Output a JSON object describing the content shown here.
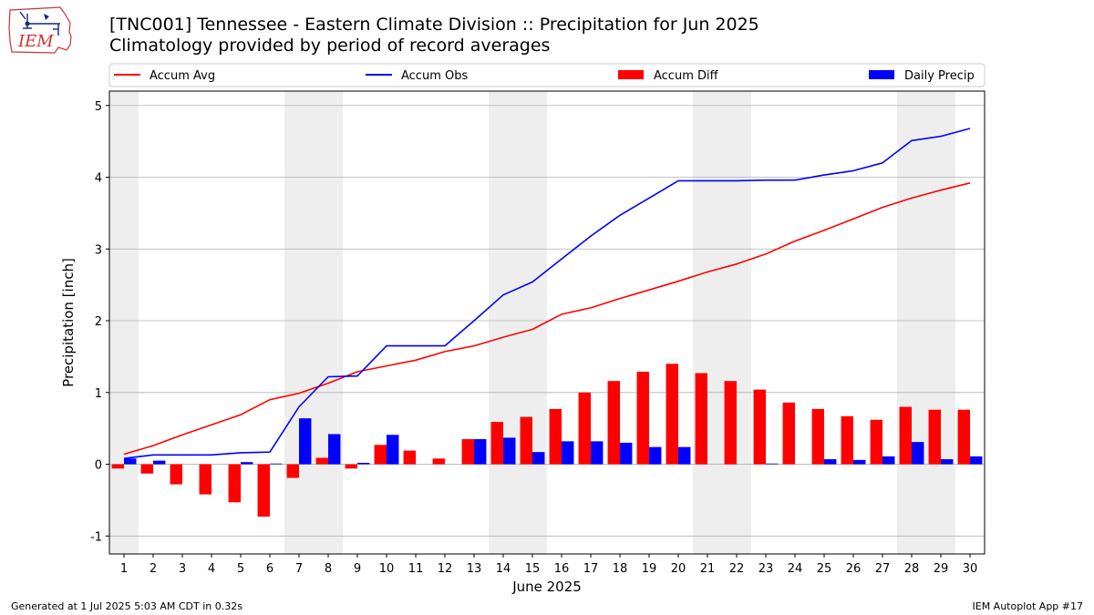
{
  "header": {
    "logo_text": "IEM",
    "title_line1": "[TNC001] Tennessee - Eastern Climate Division :: Precipitation for Jun 2025",
    "title_line2": "Climatology provided by period of record averages"
  },
  "footer": {
    "generated": "Generated at 1 Jul 2025 5:03 AM CDT in 0.32s",
    "app": "IEM Autoplot App #17"
  },
  "chart_data": {
    "type": "bar",
    "title": "[TNC001] Tennessee - Eastern Climate Division :: Precipitation for Jun 2025",
    "subtitle": "Climatology provided by period of record averages",
    "xlabel": "June 2025",
    "ylabel": "Precipitation [inch]",
    "ylim": [
      -1.25,
      5.2
    ],
    "yticks": [
      -1,
      0,
      1,
      2,
      3,
      4,
      5
    ],
    "grid": true,
    "legend_position": "top",
    "categories": [
      "1",
      "2",
      "3",
      "4",
      "5",
      "6",
      "7",
      "8",
      "9",
      "10",
      "11",
      "12",
      "13",
      "14",
      "15",
      "16",
      "17",
      "18",
      "19",
      "20",
      "21",
      "22",
      "23",
      "24",
      "25",
      "26",
      "27",
      "28",
      "29",
      "30"
    ],
    "weekend_days": [
      1,
      7,
      8,
      14,
      15,
      21,
      22,
      28,
      29
    ],
    "series": [
      {
        "name": "Accum Avg",
        "kind": "line",
        "color": "#ff0000",
        "values": [
          0.14,
          0.26,
          0.41,
          0.55,
          0.69,
          0.9,
          0.99,
          1.13,
          1.29,
          1.37,
          1.45,
          1.57,
          1.65,
          1.77,
          1.88,
          2.09,
          2.18,
          2.31,
          2.43,
          2.55,
          2.68,
          2.79,
          2.93,
          3.11,
          3.26,
          3.42,
          3.58,
          3.71,
          3.82,
          3.92
        ]
      },
      {
        "name": "Accum Obs",
        "kind": "line",
        "color": "#0000ff",
        "values": [
          0.08,
          0.13,
          0.13,
          0.13,
          0.16,
          0.17,
          0.8,
          1.22,
          1.23,
          1.65,
          1.65,
          1.65,
          2.0,
          2.36,
          2.54,
          2.86,
          3.18,
          3.47,
          3.71,
          3.95,
          3.95,
          3.95,
          3.96,
          3.96,
          4.03,
          4.09,
          4.2,
          4.51,
          4.57,
          4.68
        ]
      },
      {
        "name": "Accum Diff",
        "kind": "bar",
        "color": "#ff0000",
        "values": [
          -0.06,
          -0.13,
          -0.28,
          -0.42,
          -0.53,
          -0.73,
          -0.19,
          0.09,
          -0.06,
          0.27,
          0.19,
          0.08,
          0.35,
          0.59,
          0.66,
          0.77,
          1.0,
          1.16,
          1.29,
          1.4,
          1.27,
          1.16,
          1.04,
          0.86,
          0.77,
          0.67,
          0.62,
          0.8,
          0.76,
          0.76
        ]
      },
      {
        "name": "Daily Precip",
        "kind": "bar",
        "color": "#0000ff",
        "values": [
          0.08,
          0.05,
          0.0,
          0.0,
          0.03,
          0.01,
          0.64,
          0.42,
          0.02,
          0.41,
          0.0,
          0.0,
          0.35,
          0.37,
          0.17,
          0.32,
          0.32,
          0.3,
          0.24,
          0.24,
          0.0,
          0.0,
          0.01,
          0.0,
          0.07,
          0.06,
          0.11,
          0.31,
          0.07,
          0.11
        ]
      }
    ]
  }
}
